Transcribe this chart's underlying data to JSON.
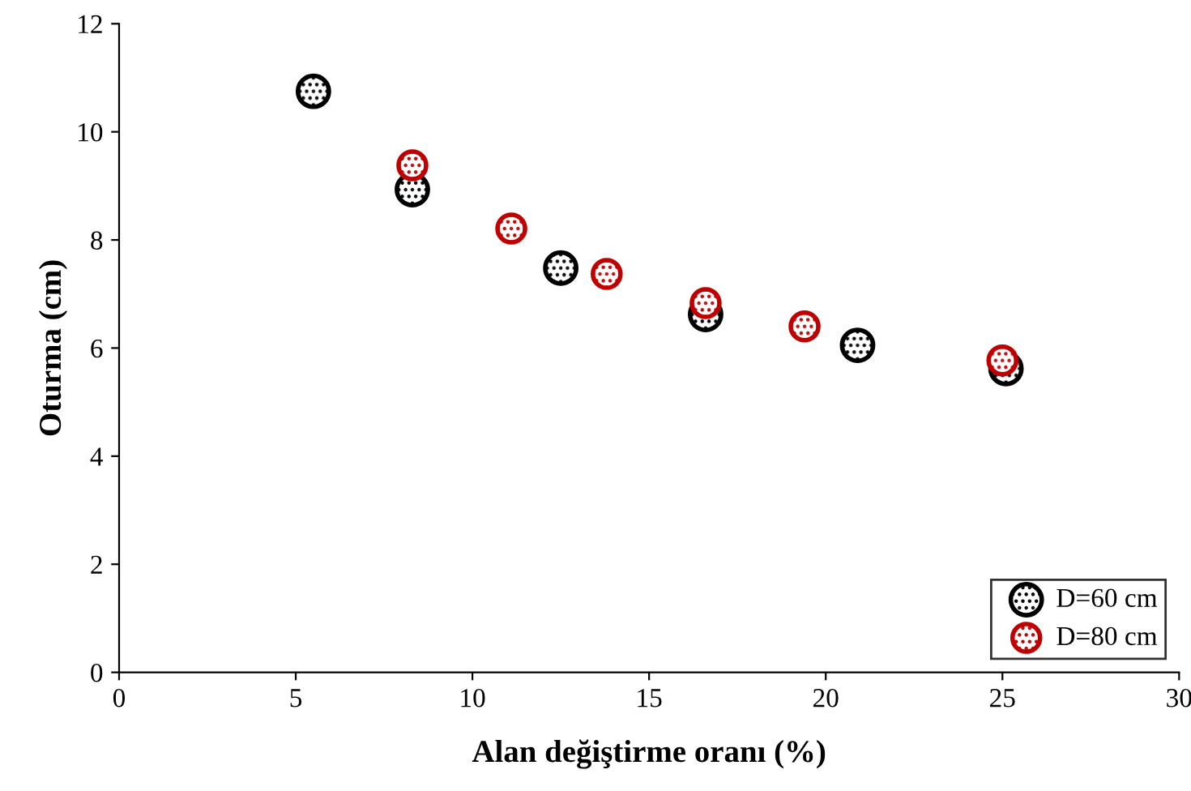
{
  "chart_data": {
    "type": "scatter",
    "xlabel": "Alan değiştirme oranı (%)",
    "ylabel": "Oturma (cm)",
    "xlim": [
      0,
      30
    ],
    "xticks": [
      0,
      5,
      10,
      15,
      20,
      25,
      30
    ],
    "ylim": [
      0,
      12
    ],
    "yticks": [
      0,
      2,
      4,
      6,
      8,
      10,
      12
    ],
    "grid": false,
    "legend": "bottom right",
    "marker": "circle",
    "series": [
      {
        "name": "D=60 cm",
        "color": "#000000",
        "x": [
          5.5,
          8.3,
          12.5,
          16.6,
          20.9,
          25.1
        ],
        "values": [
          10.75,
          8.93,
          7.48,
          6.62,
          6.05,
          5.62
        ]
      },
      {
        "name": "D=80 cm",
        "color": "#c00000",
        "x": [
          8.3,
          11.1,
          13.8,
          16.6,
          19.4,
          25.0
        ],
        "values": [
          9.38,
          8.21,
          7.37,
          6.83,
          6.4,
          5.77
        ]
      }
    ]
  }
}
